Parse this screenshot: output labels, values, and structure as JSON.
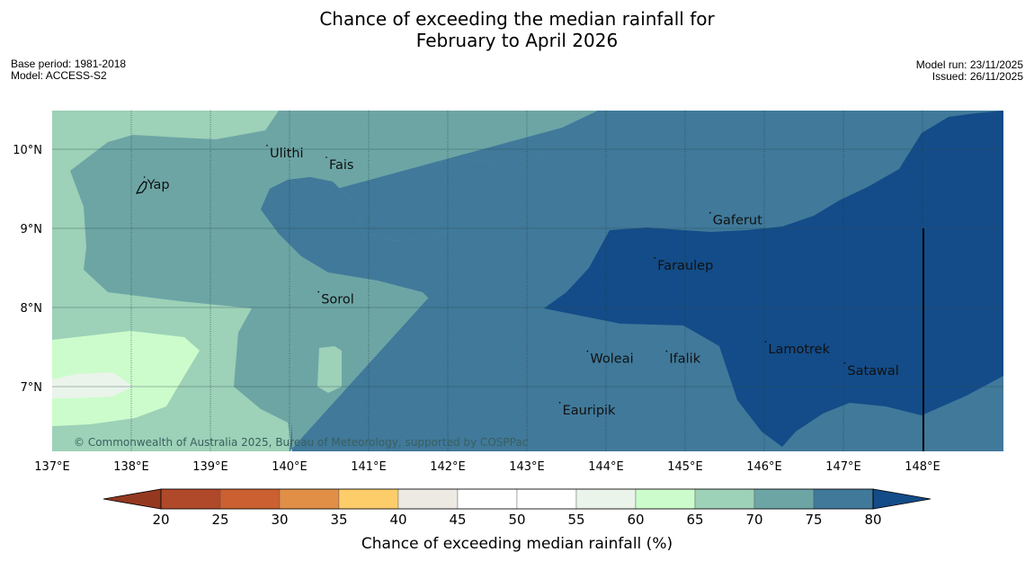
{
  "header": {
    "title_line1": "Chance of exceeding the median rainfall for",
    "title_line2": "February to April 2026",
    "base_period": "Base period: 1981-2018",
    "model": "Model: ACCESS-S2",
    "model_run": "Model run: 23/11/2025",
    "issued": "Issued: 26/11/2025"
  },
  "map": {
    "lon_range": [
      137,
      149
    ],
    "lat_range": [
      6.2,
      10.5
    ],
    "lon_ticks": [
      "137°E",
      "138°E",
      "139°E",
      "140°E",
      "141°E",
      "142°E",
      "143°E",
      "144°E",
      "145°E",
      "146°E",
      "147°E",
      "148°E"
    ],
    "lat_ticks": [
      "10°N",
      "9°N",
      "8°N",
      "7°N"
    ],
    "copyright": "© Commonwealth of Australia 2025, Bureau of Meteorology, supported by COSPPac",
    "places": [
      {
        "name": "Ulithi",
        "lon": 139.75,
        "lat": 9.9
      },
      {
        "name": "Fais",
        "lon": 140.5,
        "lat": 9.75
      },
      {
        "name": "Yap",
        "lon": 138.2,
        "lat": 9.5
      },
      {
        "name": "Gaferut",
        "lon": 145.35,
        "lat": 9.05
      },
      {
        "name": "Faraulep",
        "lon": 144.65,
        "lat": 8.48
      },
      {
        "name": "Sorol",
        "lon": 140.4,
        "lat": 8.05
      },
      {
        "name": "Lamotrek",
        "lon": 146.05,
        "lat": 7.42
      },
      {
        "name": "Woleai",
        "lon": 143.8,
        "lat": 7.3
      },
      {
        "name": "Ifalik",
        "lon": 144.8,
        "lat": 7.3
      },
      {
        "name": "Satawal",
        "lon": 147.05,
        "lat": 7.15
      },
      {
        "name": "Eauripik",
        "lon": 143.45,
        "lat": 6.65
      }
    ]
  },
  "colorbar": {
    "title": "Chance of exceeding median rainfall (%)",
    "labels": [
      "20",
      "25",
      "30",
      "35",
      "40",
      "45",
      "50",
      "55",
      "60",
      "65",
      "70",
      "75",
      "80"
    ],
    "colors": [
      "#b0482a",
      "#cc6030",
      "#e18f47",
      "#fdcd6a",
      "#ede9e3",
      "#ffffff",
      "#ffffff",
      "#eaf4ea",
      "#ccfccc",
      "#9dd1b8",
      "#6da5a5",
      "#40799a",
      "#134c88"
    ],
    "under_color": "#953820",
    "over_color": "#134c88"
  }
}
